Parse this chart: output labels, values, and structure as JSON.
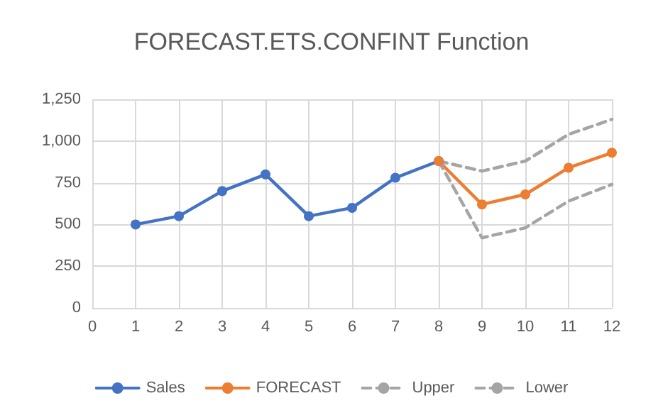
{
  "chart_data": {
    "type": "line",
    "title": "FORECAST.ETS.CONFINT Function",
    "xlim": [
      0,
      12
    ],
    "xticks": [
      0,
      1,
      2,
      3,
      4,
      5,
      6,
      7,
      8,
      9,
      10,
      11,
      12
    ],
    "ylim": [
      0,
      1250
    ],
    "yticks": [
      {
        "value": 0,
        "label": "0"
      },
      {
        "value": 250,
        "label": "250"
      },
      {
        "value": 500,
        "label": "500"
      },
      {
        "value": 750,
        "label": "750"
      },
      {
        "value": 1000,
        "label": "1,000"
      },
      {
        "value": 1250,
        "label": "1,250"
      }
    ],
    "grid": true,
    "legend": "bottom",
    "series": [
      {
        "name": "Sales",
        "color": "#4472c4",
        "marker": "circle",
        "line_style": "solid",
        "x": [
          1,
          2,
          3,
          4,
          5,
          6,
          7,
          8
        ],
        "values": [
          500,
          550,
          700,
          800,
          550,
          600,
          780,
          880
        ]
      },
      {
        "name": "FORECAST",
        "color": "#ed7d31",
        "marker": "circle",
        "line_style": "solid",
        "x": [
          8,
          9,
          10,
          11,
          12
        ],
        "values": [
          880,
          620,
          680,
          840,
          930
        ]
      },
      {
        "name": "Upper",
        "color": "#a5a5a5",
        "marker": "none",
        "line_style": "dashed",
        "x": [
          8,
          9,
          10,
          11,
          12
        ],
        "values": [
          880,
          820,
          880,
          1040,
          1130
        ]
      },
      {
        "name": "Lower",
        "color": "#a5a5a5",
        "marker": "none",
        "line_style": "dashed",
        "x": [
          8,
          9,
          10,
          11,
          12
        ],
        "values": [
          880,
          420,
          480,
          640,
          740
        ]
      }
    ]
  }
}
